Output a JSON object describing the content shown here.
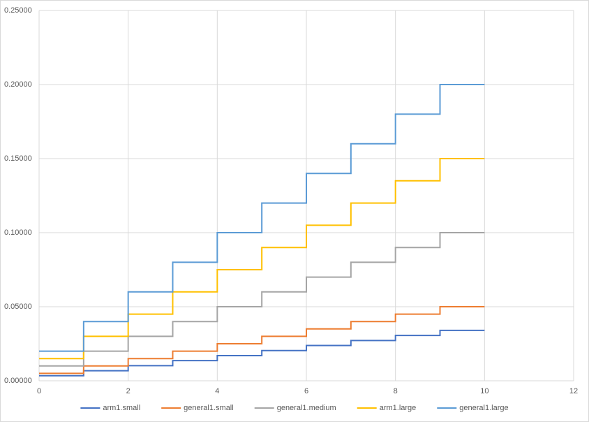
{
  "chart_data": {
    "type": "step",
    "x": [
      0,
      1,
      2,
      3,
      4,
      5,
      6,
      7,
      8,
      9,
      10
    ],
    "series": [
      {
        "name": "arm1.small",
        "color": "#4472c4",
        "values": [
          0.0034,
          0.0068,
          0.0102,
          0.0136,
          0.017,
          0.0204,
          0.0238,
          0.0272,
          0.0306,
          0.034,
          0.034
        ]
      },
      {
        "name": "general1.small",
        "color": "#ed7d31",
        "values": [
          0.005,
          0.01,
          0.015,
          0.02,
          0.025,
          0.03,
          0.035,
          0.04,
          0.045,
          0.05,
          0.05
        ]
      },
      {
        "name": "general1.medium",
        "color": "#a5a5a5",
        "values": [
          0.01,
          0.02,
          0.03,
          0.04,
          0.05,
          0.06,
          0.07,
          0.08,
          0.09,
          0.1,
          0.1
        ]
      },
      {
        "name": "arm1.large",
        "color": "#ffc000",
        "values": [
          0.015,
          0.03,
          0.045,
          0.06,
          0.075,
          0.09,
          0.105,
          0.12,
          0.135,
          0.15,
          0.15
        ]
      },
      {
        "name": "general1.large",
        "color": "#5b9bd5",
        "values": [
          0.02,
          0.04,
          0.06,
          0.08,
          0.1,
          0.12,
          0.14,
          0.16,
          0.18,
          0.2,
          0.2
        ]
      }
    ],
    "xlim": [
      0,
      12
    ],
    "xticks": [
      0,
      2,
      4,
      6,
      8,
      10,
      12
    ],
    "ylim": [
      0,
      0.25
    ],
    "yticks": [
      {
        "value": 0,
        "label": "0.00000"
      },
      {
        "value": 0.05,
        "label": "0.05000"
      },
      {
        "value": 0.1,
        "label": "0.10000"
      },
      {
        "value": 0.15,
        "label": "0.15000"
      },
      {
        "value": 0.2,
        "label": "0.20000"
      },
      {
        "value": 0.25,
        "label": "0.25000"
      }
    ],
    "grid": true,
    "legend": "bottom"
  }
}
